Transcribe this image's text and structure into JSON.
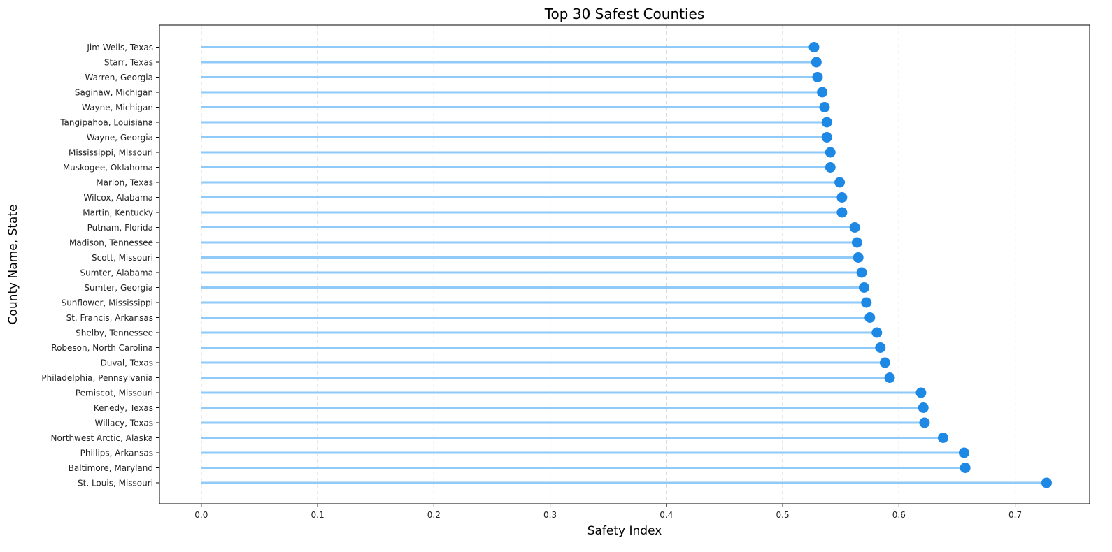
{
  "chart_data": {
    "type": "lollipop",
    "orientation": "horizontal",
    "title": "Top 30 Safest Counties",
    "xlabel": "Safety Index",
    "ylabel": "County Name, State",
    "xlim": [
      -0.036,
      0.764
    ],
    "xticks": [
      0.0,
      0.1,
      0.2,
      0.3,
      0.4,
      0.5,
      0.6,
      0.7
    ],
    "xtick_labels": [
      "0.0",
      "0.1",
      "0.2",
      "0.3",
      "0.4",
      "0.5",
      "0.6",
      "0.7"
    ],
    "grid": "x-dashed",
    "categories": [
      "Jim Wells, Texas",
      "Starr, Texas",
      "Warren, Georgia",
      "Saginaw, Michigan",
      "Wayne, Michigan",
      "Tangipahoa, Louisiana",
      "Wayne, Georgia",
      "Mississippi, Missouri",
      "Muskogee, Oklahoma",
      "Marion, Texas",
      "Wilcox, Alabama",
      "Martin, Kentucky",
      "Putnam, Florida",
      "Madison, Tennessee",
      "Scott, Missouri",
      "Sumter, Alabama",
      "Sumter, Georgia",
      "Sunflower, Mississippi",
      "St. Francis, Arkansas",
      "Shelby, Tennessee",
      "Robeson, North Carolina",
      "Duval, Texas",
      "Philadelphia, Pennsylvania",
      "Pemiscot, Missouri",
      "Kenedy, Texas",
      "Willacy, Texas",
      "Northwest Arctic, Alaska",
      "Phillips, Arkansas",
      "Baltimore, Maryland",
      "St. Louis, Missouri"
    ],
    "values": [
      0.527,
      0.529,
      0.53,
      0.534,
      0.536,
      0.538,
      0.538,
      0.541,
      0.541,
      0.549,
      0.551,
      0.551,
      0.562,
      0.564,
      0.565,
      0.568,
      0.57,
      0.572,
      0.575,
      0.581,
      0.584,
      0.588,
      0.592,
      0.619,
      0.621,
      0.622,
      0.638,
      0.656,
      0.657,
      0.727
    ],
    "colors": {
      "stem": "#90caf9",
      "marker": "#1e88e5",
      "grid": "#c8c8c8",
      "axis": "#000000"
    }
  }
}
